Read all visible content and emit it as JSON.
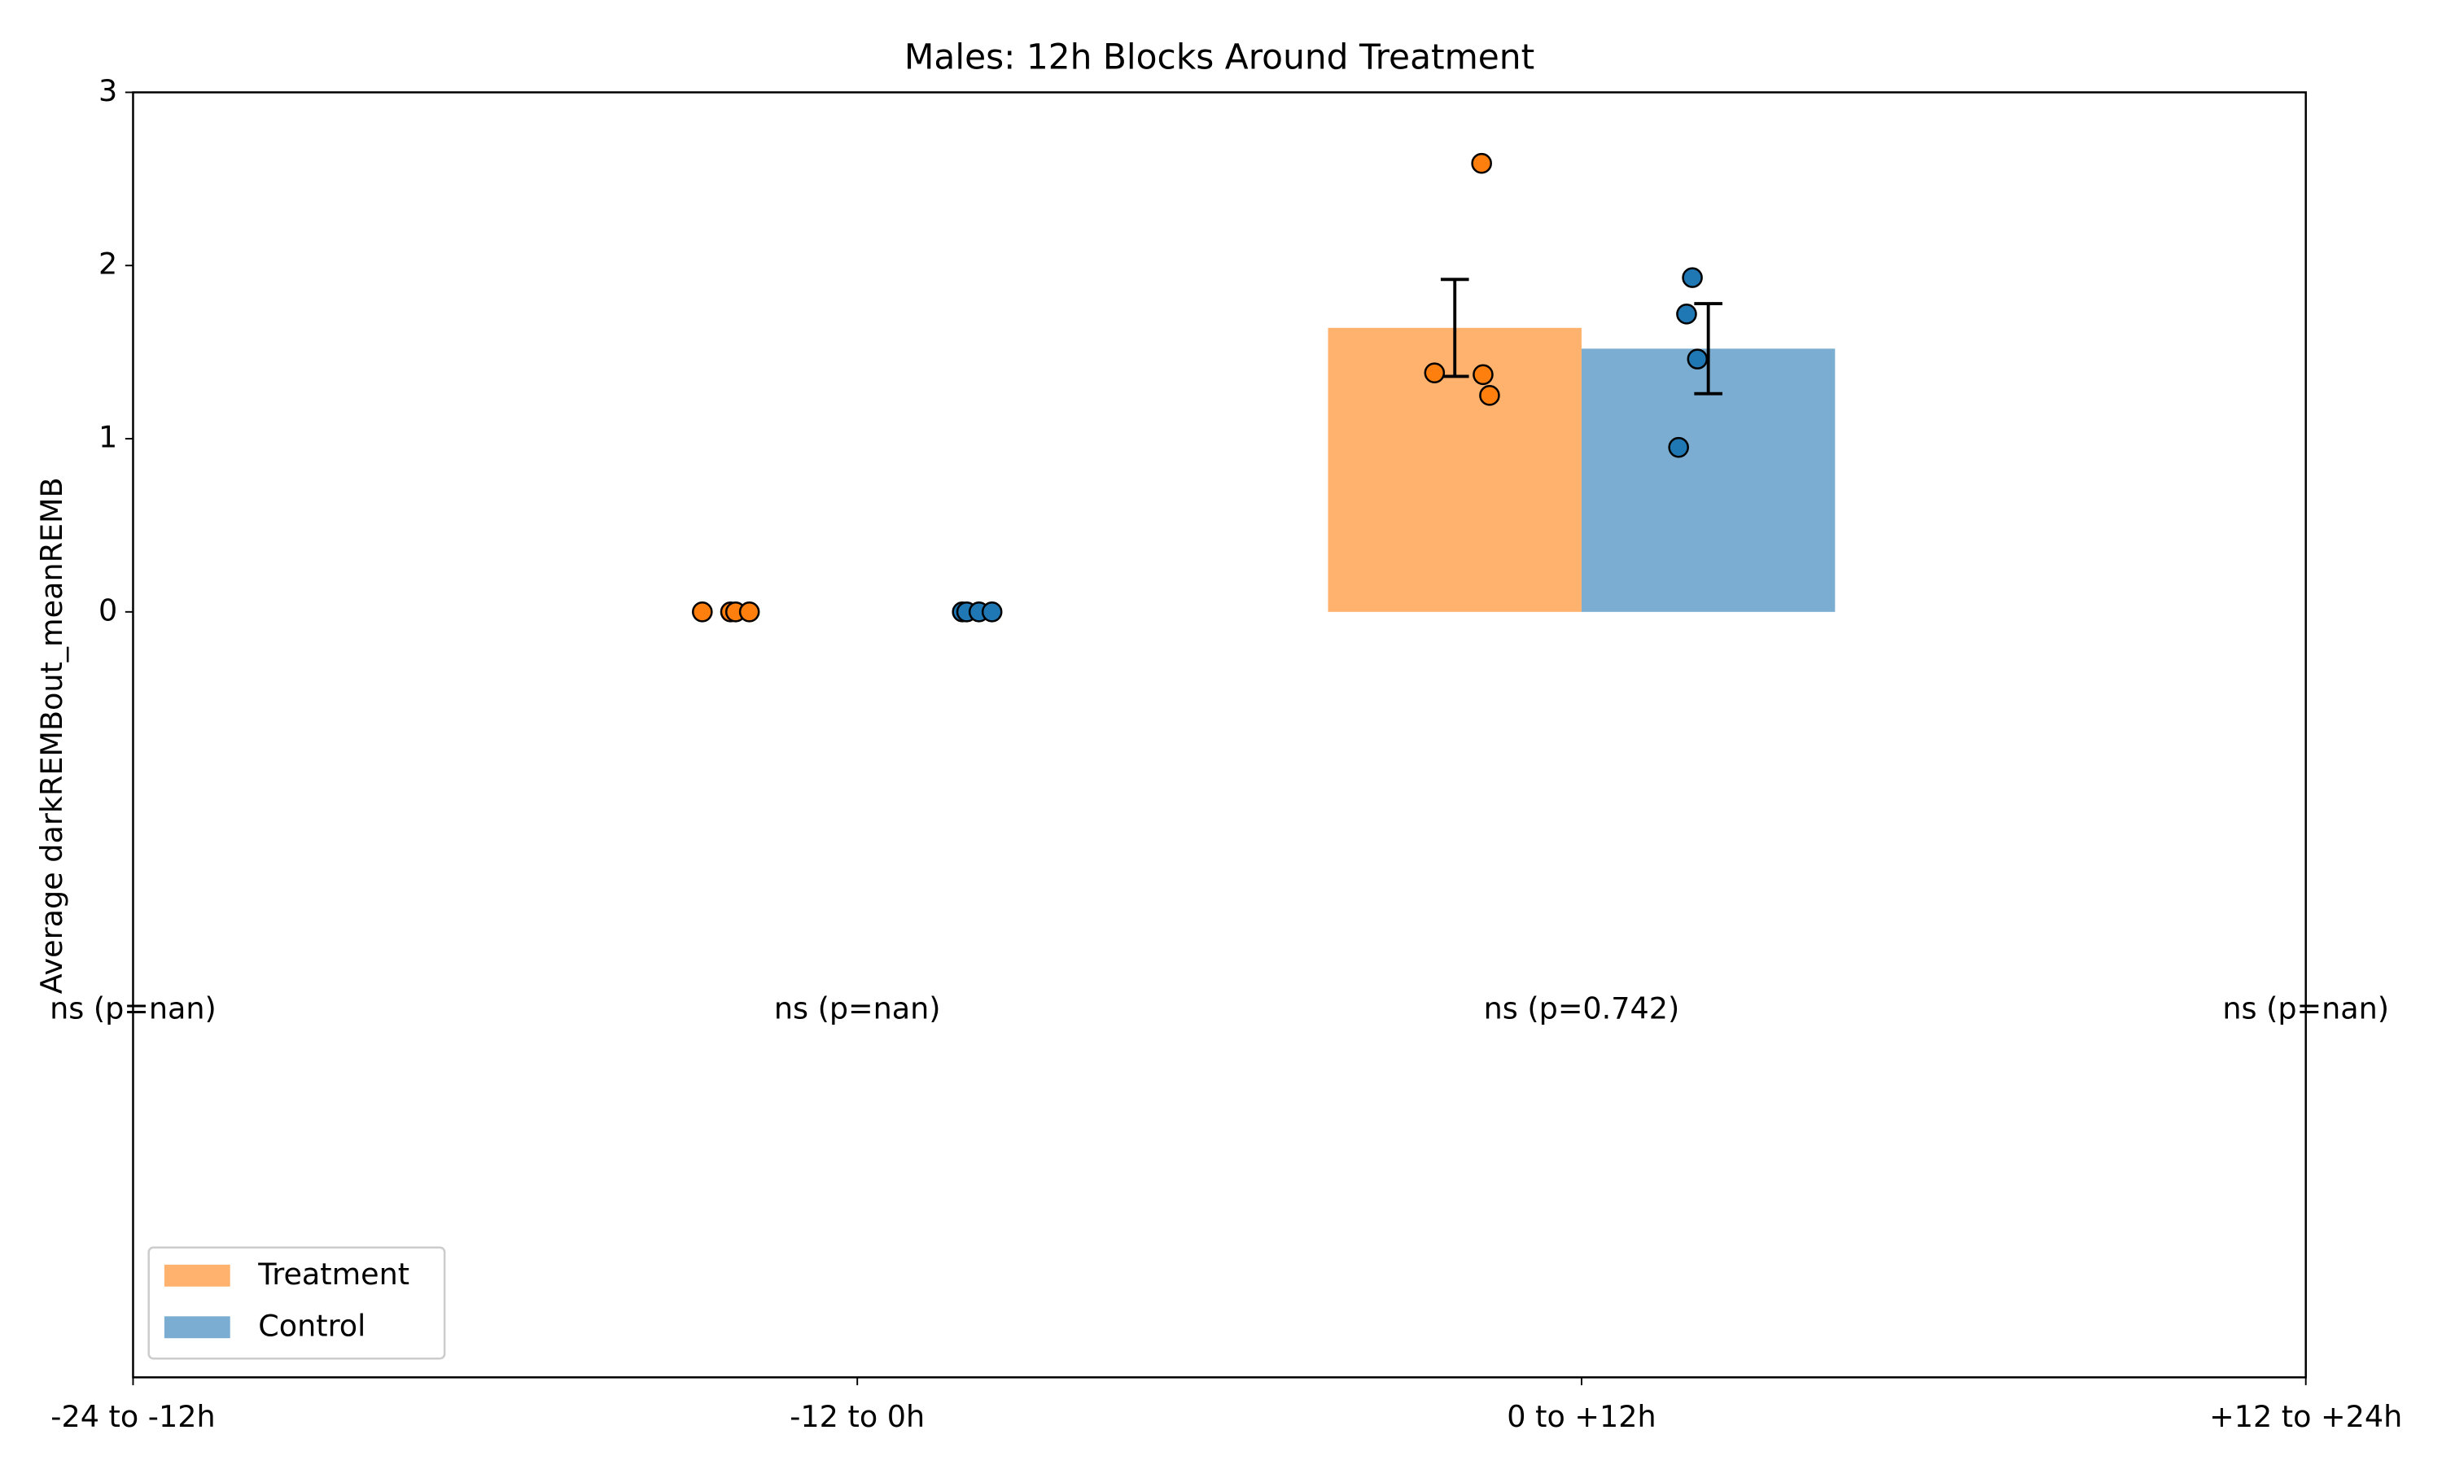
{
  "chart_data": {
    "type": "bar",
    "title": "Males: 12h Blocks Around Treatment",
    "y_label": "Average darkREMBout_meanREMB",
    "categories": [
      "-24 to -12h",
      "-12 to 0h",
      "0 to +12h",
      "+12 to +24h"
    ],
    "xlim": [
      0,
      3
    ],
    "ylim": [
      -4.42,
      3
    ],
    "yticks": [
      0,
      1,
      2,
      3
    ],
    "legend": "lower left",
    "series": [
      {
        "name": "Treatment",
        "color": "#ff7f0e",
        "bar_color": "#ffb26e",
        "values": [
          null,
          0,
          1.64,
          null
        ],
        "errors": [
          null,
          null,
          0.28,
          null
        ],
        "points": {
          "x": [
            0.786,
            0.825,
            0.832,
            0.851,
            1.797,
            1.864,
            1.873,
            1.862
          ],
          "y": [
            0,
            0,
            0,
            0,
            1.38,
            1.37,
            1.25,
            2.59
          ]
        }
      },
      {
        "name": "Control",
        "color": "#1f77b4",
        "bar_color": "#7aadd1",
        "values": [
          null,
          0,
          1.52,
          null
        ],
        "errors": [
          null,
          null,
          0.26,
          null
        ],
        "points": {
          "x": [
            1.145,
            1.151,
            1.168,
            1.186,
            2.153,
            2.145,
            2.16,
            2.134
          ],
          "y": [
            0,
            0,
            0,
            0,
            1.93,
            1.72,
            1.46,
            0.95
          ]
        }
      }
    ],
    "annotations": [
      {
        "text": "ns (p=nan)",
        "x": 0,
        "y": -2.3
      },
      {
        "text": "ns (p=nan)",
        "x": 1,
        "y": -2.3
      },
      {
        "text": "ns (p=0.742)",
        "x": 2,
        "y": -2.3
      },
      {
        "text": "ns (p=nan)",
        "x": 3,
        "y": -2.3
      }
    ]
  }
}
